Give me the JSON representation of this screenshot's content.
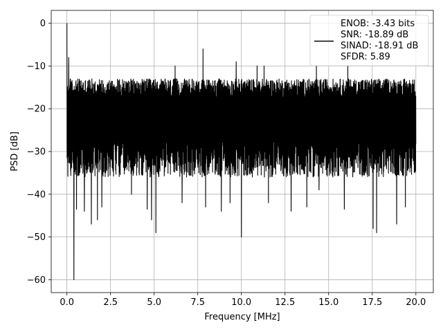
{
  "chart_data": {
    "type": "line",
    "title": "",
    "xlabel": "Frequency [MHz]",
    "ylabel": "PSD [dB]",
    "xlim": [
      -0.9,
      21.0
    ],
    "ylim": [
      -63,
      3
    ],
    "xticks": [
      0.0,
      2.5,
      5.0,
      7.5,
      10.0,
      12.5,
      15.0,
      17.5,
      20.0
    ],
    "xtick_labels": [
      "0.0",
      "2.5",
      "5.0",
      "7.5",
      "10.0",
      "12.5",
      "15.0",
      "17.5",
      "20.0"
    ],
    "yticks": [
      0,
      -10,
      -20,
      -30,
      -40,
      -50,
      -60
    ],
    "ytick_labels": [
      "0",
      "−10",
      "−20",
      "−30",
      "−40",
      "−50",
      "−60"
    ],
    "grid": true,
    "legend_placement": "upper-right",
    "legend_entries": [
      "ENOB: -3.43 bits",
      "SNR: -18.89 dB",
      "SINAD: -18.91 dB",
      "SFDR: 5.89"
    ],
    "series": [
      {
        "color": "#000000",
        "noise_floor_db": -23,
        "noise_upper_db": -13,
        "noise_lower_db": -36,
        "peaks": [
          {
            "x": 0.0,
            "y": 0.0
          },
          {
            "x": 0.1,
            "y": -8.0
          },
          {
            "x": 0.2,
            "y": -13.0
          },
          {
            "x": 7.8,
            "y": -6.0
          },
          {
            "x": 6.2,
            "y": -10.0
          },
          {
            "x": 9.7,
            "y": -9.0
          },
          {
            "x": 10.9,
            "y": -10.0
          },
          {
            "x": 11.3,
            "y": -10.0
          },
          {
            "x": 14.3,
            "y": -10.0
          },
          {
            "x": 16.1,
            "y": -10.0
          }
        ],
        "dips": [
          {
            "x": 0.4,
            "y": -60.0
          },
          {
            "x": 0.55,
            "y": -43.5
          },
          {
            "x": 1.0,
            "y": -44.0
          },
          {
            "x": 1.4,
            "y": -47.0
          },
          {
            "x": 1.75,
            "y": -46.0
          },
          {
            "x": 2.0,
            "y": -43.0
          },
          {
            "x": 3.7,
            "y": -40.0
          },
          {
            "x": 4.6,
            "y": -43.5
          },
          {
            "x": 4.85,
            "y": -46.0
          },
          {
            "x": 5.1,
            "y": -49.0
          },
          {
            "x": 6.6,
            "y": -42.0
          },
          {
            "x": 7.95,
            "y": -43.0
          },
          {
            "x": 8.85,
            "y": -44.0
          },
          {
            "x": 9.35,
            "y": -42.0
          },
          {
            "x": 10.0,
            "y": -50.0
          },
          {
            "x": 11.55,
            "y": -42.0
          },
          {
            "x": 12.85,
            "y": -44.0
          },
          {
            "x": 13.75,
            "y": -43.0
          },
          {
            "x": 14.45,
            "y": -39.0
          },
          {
            "x": 15.9,
            "y": -43.5
          },
          {
            "x": 17.55,
            "y": -48.0
          },
          {
            "x": 17.75,
            "y": -49.0
          },
          {
            "x": 18.9,
            "y": -47.0
          },
          {
            "x": 19.4,
            "y": -43.0
          }
        ]
      }
    ]
  }
}
